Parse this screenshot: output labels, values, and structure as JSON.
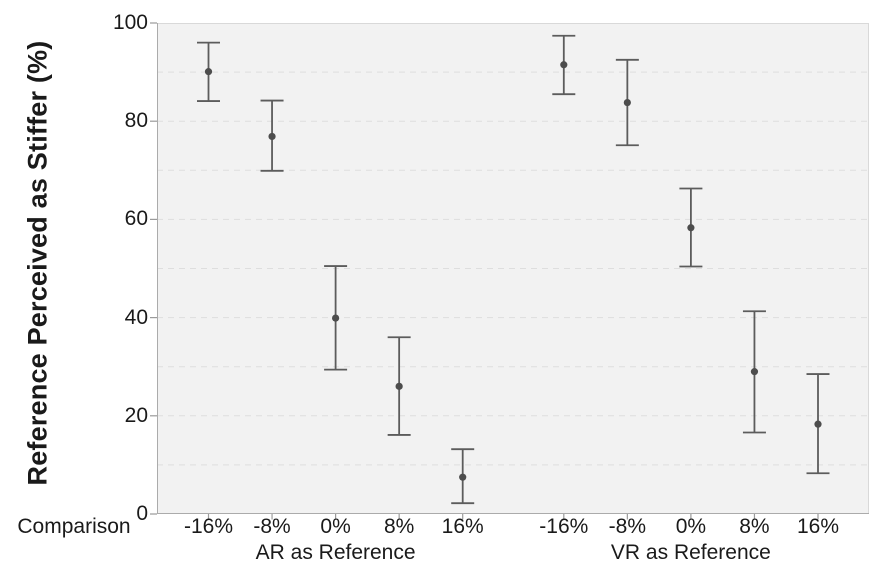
{
  "figure": {
    "colors": {
      "point": "#4d4d4d",
      "error_bar": "#5c5c5c",
      "plot_background": "#f2f2f2",
      "gridline": "#dedede",
      "plot_border": "#d9d9d9",
      "axis_line": "#ababab",
      "tick_mark": "#9a9a9a",
      "text": "#1a1a1a"
    }
  },
  "chart_data": {
    "type": "scatter",
    "subtype": "point-estimates-with-error-bars",
    "title": "",
    "ylabel": "Reference Perceived as Stiffer (%)",
    "xlabel": "Comparison",
    "ylim": [
      0,
      100
    ],
    "yticks": [
      0,
      20,
      40,
      60,
      80,
      100
    ],
    "grid": "horizontal dashed every 10 units, gridlines on",
    "legend": "none",
    "groups": [
      {
        "label": "AR as Reference",
        "categories": [
          "-16%",
          "-8%",
          "0%",
          "8%",
          "16%"
        ],
        "series": [
          {
            "name": "mean",
            "values": [
              90.1,
              76.9,
              39.9,
              26.0,
              7.5
            ]
          },
          {
            "name": "ci_low",
            "values": [
              84.1,
              69.9,
              29.4,
              16.1,
              2.2
            ]
          },
          {
            "name": "ci_high",
            "values": [
              96.0,
              84.2,
              50.5,
              36.0,
              13.2
            ]
          }
        ]
      },
      {
        "label": "VR as Reference",
        "categories": [
          "-16%",
          "-8%",
          "0%",
          "8%",
          "16%"
        ],
        "series": [
          {
            "name": "mean",
            "values": [
              91.5,
              83.8,
              58.3,
              29.0,
              18.3
            ]
          },
          {
            "name": "ci_low",
            "values": [
              85.5,
              75.1,
              50.4,
              16.6,
              8.3
            ]
          },
          {
            "name": "ci_high",
            "values": [
              97.4,
              92.5,
              66.3,
              41.3,
              28.5
            ]
          }
        ]
      }
    ]
  }
}
